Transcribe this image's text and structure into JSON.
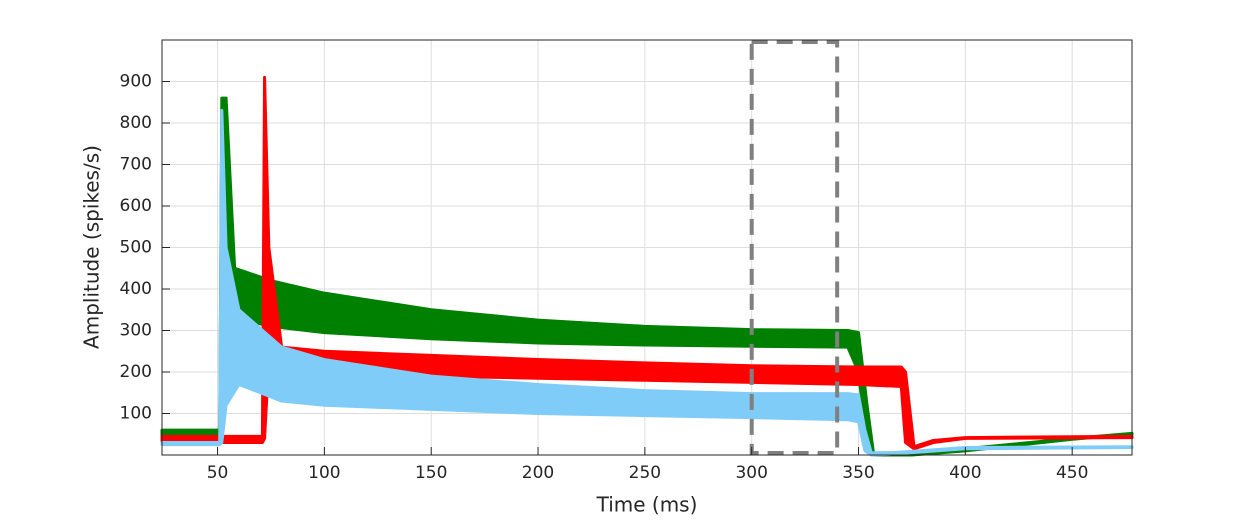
{
  "chart_data": {
    "type": "band",
    "xlabel": "Time (ms)",
    "ylabel": "Amplitude (spikes/s)",
    "xlim": [
      24,
      478
    ],
    "ylim": [
      0,
      1000
    ],
    "xticks": [
      50,
      100,
      150,
      200,
      250,
      300,
      350,
      400,
      450
    ],
    "yticks": [
      100,
      200,
      300,
      400,
      500,
      600,
      700,
      800,
      900
    ],
    "grid": true,
    "highlight": {
      "x": [
        300,
        340
      ],
      "color": "#808080"
    },
    "series": [
      {
        "color": "#008000",
        "x": [
          24,
          51,
          52,
          54,
          58,
          75,
          100,
          150,
          200,
          250,
          300,
          345,
          350,
          354,
          357,
          375,
          400,
          450,
          478
        ],
        "values": [
          60,
          60,
          860,
          860,
          450,
          420,
          390,
          350,
          325,
          310,
          302,
          300,
          295,
          120,
          5,
          5,
          15,
          40,
          52
        ],
        "lower": [
          30,
          30,
          30,
          400,
          330,
          310,
          295,
          280,
          270,
          265,
          262,
          260,
          200,
          20,
          0,
          0,
          10,
          38,
          50
        ]
      },
      {
        "color": "#ff0000",
        "x": [
          24,
          71,
          72,
          74,
          80,
          100,
          150,
          200,
          250,
          300,
          350,
          370,
          372,
          376,
          385,
          400,
          475,
          478
        ],
        "values": [
          45,
          45,
          910,
          500,
          260,
          250,
          240,
          230,
          222,
          215,
          212,
          212,
          200,
          20,
          35,
          42,
          45,
          45
        ],
        "lower": [
          30,
          30,
          40,
          230,
          210,
          200,
          190,
          185,
          180,
          175,
          170,
          165,
          30,
          15,
          30,
          40,
          42,
          42
        ]
      },
      {
        "color": "#80ccf8",
        "x": [
          24,
          51,
          52,
          54,
          60,
          80,
          100,
          150,
          200,
          250,
          300,
          345,
          350,
          353,
          356,
          365,
          400,
          478
        ],
        "values": [
          30,
          30,
          830,
          500,
          350,
          260,
          230,
          190,
          170,
          155,
          148,
          148,
          145,
          60,
          5,
          5,
          18,
          20
        ],
        "lower": [
          25,
          25,
          30,
          120,
          170,
          130,
          120,
          110,
          100,
          95,
          90,
          85,
          80,
          10,
          0,
          2,
          15,
          18
        ]
      }
    ]
  }
}
